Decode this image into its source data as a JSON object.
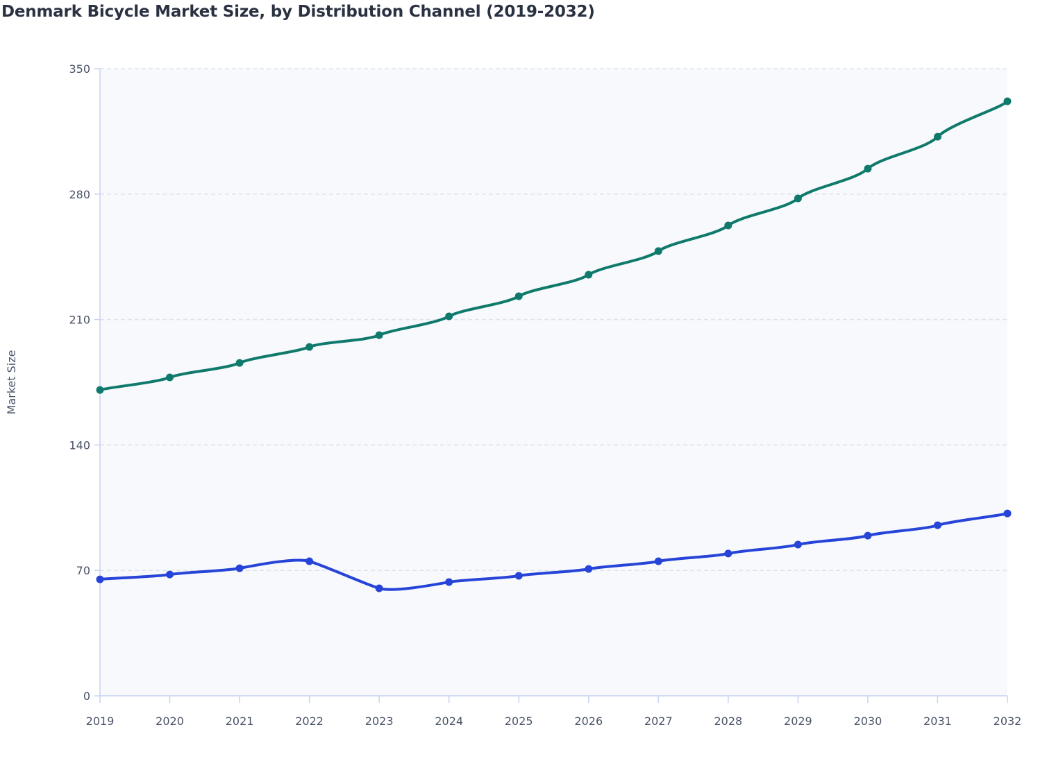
{
  "chart_data": {
    "type": "line",
    "title": "Denmark Bicycle Market Size, by Distribution Channel (2019-2032)",
    "xlabel": "",
    "ylabel": "Market Size",
    "x": [
      2019,
      2020,
      2021,
      2022,
      2023,
      2024,
      2025,
      2026,
      2027,
      2028,
      2029,
      2030,
      2031,
      2032
    ],
    "ylim": [
      0,
      350
    ],
    "yticks": [
      0,
      70,
      140,
      210,
      280,
      350
    ],
    "grid": true,
    "legend": "none",
    "series": [
      {
        "color": "#0f7a6c",
        "values": [
          170.7,
          177.7,
          185.8,
          194.7,
          201.3,
          211.8,
          223.0,
          235.0,
          248.2,
          262.5,
          277.6,
          294.2,
          312.0,
          331.8
        ]
      },
      {
        "color": "#2744d8",
        "values": [
          65.0,
          67.7,
          71.2,
          75.1,
          60.0,
          63.5,
          67.0,
          70.8,
          75.1,
          79.4,
          84.4,
          89.4,
          95.2,
          101.8
        ]
      }
    ]
  }
}
